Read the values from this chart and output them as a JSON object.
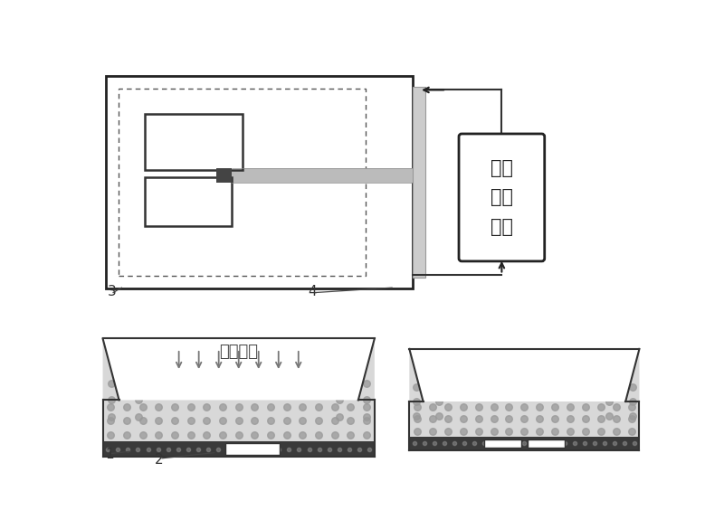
{
  "bg_color": "#ffffff",
  "label1": "1",
  "label2": "2",
  "label3": "3",
  "label4": "4",
  "pressure_text": "被测压力",
  "pll_text": "锁相\n闭环\n电路",
  "colors": {
    "dark_band": "#3a3a3a",
    "stipple_bg": "#d8d8d8",
    "stipple_dot": "#999999",
    "outline": "#333333",
    "white": "#ffffff",
    "arrow": "#666666",
    "gray_bar": "#aaaaaa",
    "dashed": "#555555"
  }
}
